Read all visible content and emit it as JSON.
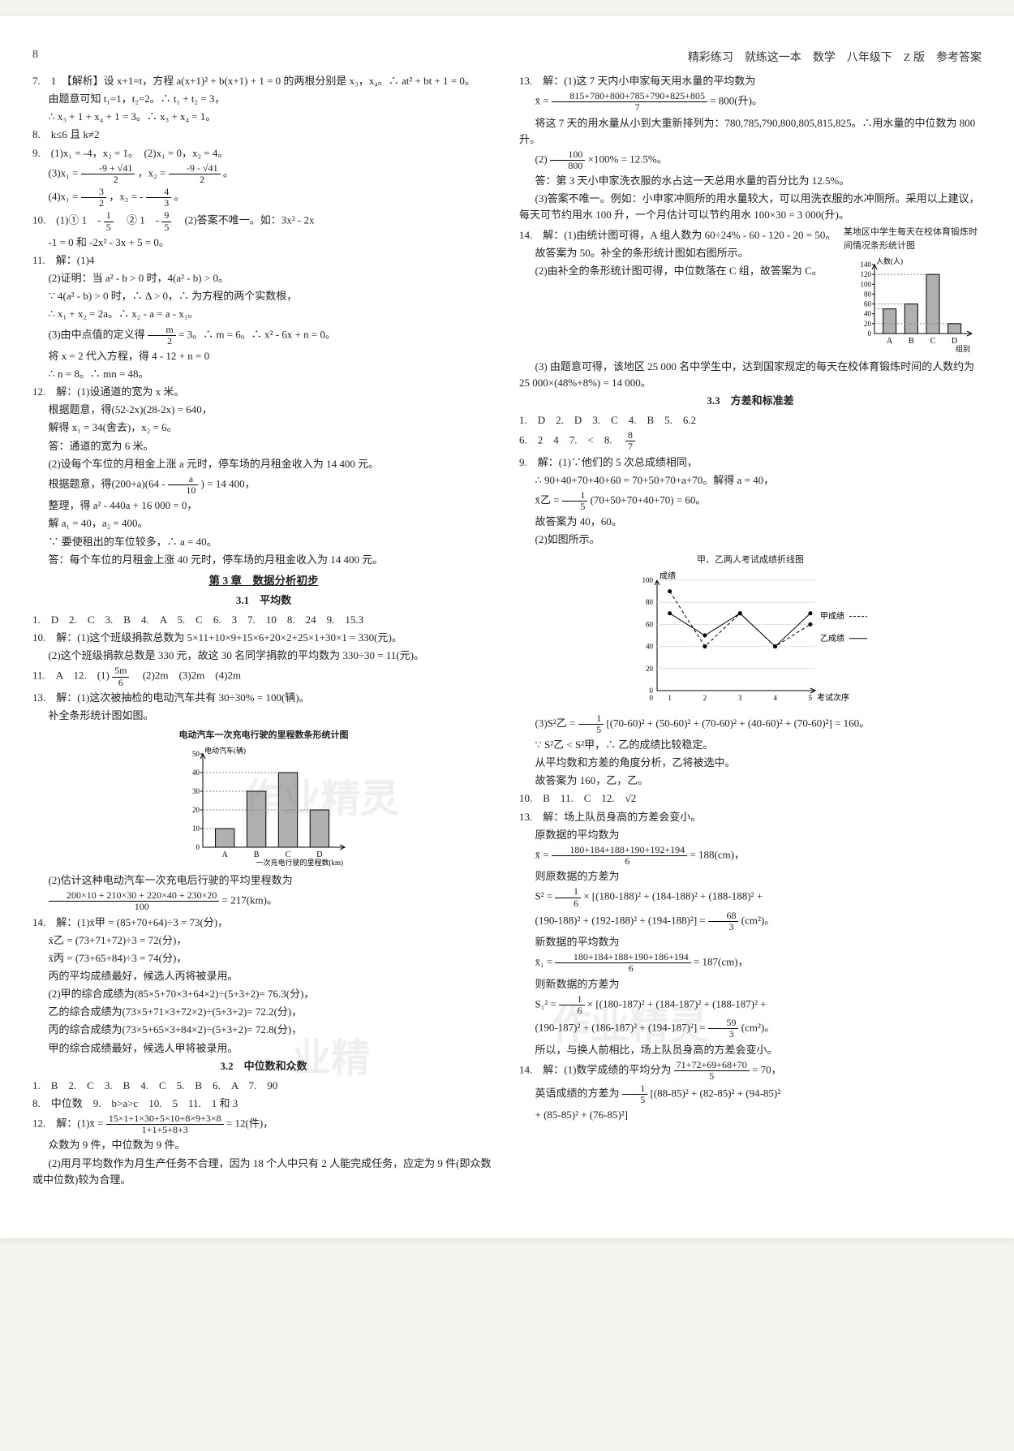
{
  "header": {
    "page_number": "8",
    "breadcrumb": "精彩练习　就练这一本　数学　八年级下　Z 版　参考答案"
  },
  "left": {
    "p7": "7.　1　【解析】设 x+1=t，方程 a(x+1)² + b(x+1) + 1 = 0 的两根分别是 x₃，x₄。∴ at² + bt + 1 = 0。",
    "p7b": "由题意可知 t₁=1，t₂=2。∴ t₁ + t₂ = 3，",
    "p7c": "∴ x₃ + 1 + x₄ + 1 = 3。∴ x₃ + x₄ = 1。",
    "p8": "8.　k≤6 且 k≠2",
    "p9": "9.　(1)x₁ = -4，x₂ = 1。　(2)x₁ = 0，x₂ = 4。",
    "p9b_pre": "(3)x₁ = ",
    "p9b_frac1_n": "-9 + √41",
    "p9b_frac1_d": "2",
    "p9b_mid": "，x₂ = ",
    "p9b_frac2_n": "-9 - √41",
    "p9b_frac2_d": "2",
    "p9b_post": "。",
    "p9c_pre": "(4)x₁ = ",
    "p9c_f1n": "3",
    "p9c_f1d": "2",
    "p9c_mid": "，x₂ = - ",
    "p9c_f2n": "4",
    "p9c_f2d": "3",
    "p9c_post": "。",
    "p10_pre": "10.　(1)① 1　- ",
    "p10_f1n": "1",
    "p10_f1d": "5",
    "p10_mid": "　② 1　- ",
    "p10_f2n": "9",
    "p10_f2d": "5",
    "p10_post": "　(2)答案不唯一。如：3x² - 2x",
    "p10b": "-1 = 0 和 -2x² - 3x + 5 = 0。",
    "p11": "11.　解：(1)4",
    "p11b": "(2)证明：当 a² - b > 0 时，4(a² - b) > 0。",
    "p11c": "∵ 4(a² - b) > 0 时，∴ Δ > 0，∴ 为方程的两个实数根，",
    "p11d": "∴ x₁ + x₂ = 2a。∴ x₂ - a = a - x₁。",
    "p11e_pre": "(3)由中点值的定义得 ",
    "p11e_fn": "m",
    "p11e_fd": "2",
    "p11e_post": " = 3。∴ m = 6。∴ x² - 6x + n = 0。",
    "p11f": "将 x = 2 代入方程，得 4 - 12 + n = 0",
    "p11g": "∴ n = 8。∴ mn = 48。",
    "p12": "12.　解：(1)设通道的宽为 x 米。",
    "p12b": "根据题意，得(52-2x)(28-2x) = 640，",
    "p12c": "解得 x₁ = 34(舍去)，x₂ = 6。",
    "p12d": "答：通道的宽为 6 米。",
    "p12e": "(2)设每个车位的月租金上涨 a 元时，停车场的月租金收入为 14 400 元。",
    "p12f_pre": "根据题意，得(200+a)(64 - ",
    "p12f_fn": "a",
    "p12f_fd": "10",
    "p12f_post": ") = 14 400，",
    "p12g": "整理，得 a² - 440a + 16 000 = 0，",
    "p12h": "解 a₁ = 40，a₂ = 400。",
    "p12i": "∵ 要使租出的车位较多，∴ a = 40。",
    "p12j": "答：每个车位的月租金上涨 40 元时，停车场的月租金收入为 14 400 元。",
    "sec3": "第 3 章　数据分析初步",
    "sec31": "3.1　平均数",
    "s31_q1": "1.　D　2.　C　3.　B　4.　A　5.　C　6.　3　7.　10　8.　24　9.　15.3",
    "s31_q10": "10.　解：(1)这个班级捐款总数为 5×11+10×9+15×6+20×2+25×1+30×1 = 330(元)。",
    "s31_q10b": "(2)这个班级捐款总数是 330 元，故这 30 名同学捐款的平均数为 330÷30 = 11(元)。",
    "s31_q11_pre": "11.　A　12.　(1) ",
    "s31_q11_fn": "5m",
    "s31_q11_fd": "6",
    "s31_q11_post": "　(2)2m　(3)2m　(4)2m",
    "s31_q13": "13.　解：(1)这次被抽检的电动汽车共有 30÷30% = 100(辆)。",
    "s31_q13b": "补全条形统计图如图。",
    "chart1": {
      "title": "电动汽车一次充电行驶的里程数条形统计图",
      "ylabel": "电动汽车(辆)",
      "xlabel": "一次充电行驶的里程数(km)",
      "categories": [
        "A",
        "B",
        "C",
        "D"
      ],
      "values": [
        10,
        30,
        40,
        20
      ],
      "extra_label": "30",
      "ylim": [
        0,
        50
      ],
      "ytick_step": 10,
      "bar_color": "#b0b0b0",
      "border_color": "#000000",
      "highlight_color": "#cccccc",
      "bg": "#ffffff"
    },
    "s31_q13c": "(2)估计这种电动汽车一次充电后行驶的平均里程数为",
    "s31_q13d_fn": "200×10 + 210×30 + 220×40 + 230×20",
    "s31_q13d_fd": "100",
    "s31_q13d_post": " = 217(km)。",
    "s31_q14": "14.　解：(1)x̄甲 = (85+70+64)÷3 = 73(分)，",
    "s31_q14b": "x̄乙 = (73+71+72)÷3 = 72(分)，",
    "s31_q14c": "x̄丙 = (73+65+84)÷3 = 74(分)，",
    "s31_q14d": "丙的平均成绩最好，候选人丙将被录用。",
    "s31_q14e": "(2)甲的综合成绩为(85×5+70×3+64×2)÷(5+3+2)= 76.3(分)，",
    "s31_q14f": "乙的综合成绩为(73×5+71×3+72×2)÷(5+3+2)= 72.2(分)，",
    "s31_q14g": "丙的综合成绩为(73×5+65×3+84×2)÷(5+3+2)= 72.8(分)，",
    "s31_q14h": "甲的综合成绩最好，候选人甲将被录用。",
    "sec32": "3.2　中位数和众数",
    "s32_q1": "1.　B　2.　C　3.　B　4.　C　5.　B　6.　A　7.　90",
    "s32_q8": "8.　中位数　9.　b>a>c　10.　5　11.　1 和 3",
    "s32_q12_pre": "12.　解：(1)x̄ = ",
    "s32_q12_fn": "15×1+1×30+5×10+8×9+3×8",
    "s32_q12_fd": "1+1+5+8+3",
    "s32_q12_post": " = 12(件)，",
    "s32_q12b": "众数为 9 件，中位数为 9 件。",
    "s32_q12c": "(2)用月平均数作为月生产任务不合理，因为 18 个人中只有 2 人能完成任务，应定为 9 件(即众数或中位数)较为合理。"
  },
  "right": {
    "p13": "13.　解：(1)这 7 天内小申家每天用水量的平均数为",
    "p13_fn": "815+780+800+785+790+825+805",
    "p13_fd": "7",
    "p13_post": " = 800(升)。",
    "p13b": "将这 7 天的用水量从小到大重新排列为：780,785,790,800,805,815,825。∴用水量的中位数为 800 升。",
    "p13c_pre": "(2) ",
    "p13c_fn": "100",
    "p13c_fd": "800",
    "p13c_post": " ×100% = 12.5%。",
    "p13d": "答：第 3 天小申家洗衣服的水占这一天总用水量的百分比为 12.5%。",
    "p13e": "(3)答案不唯一。例如：小申家冲厕所的用水量较大，可以用洗衣服的水冲厕所。采用以上建议，每天可节约用水 100 升，一个月估计可以节约用水 100×30 = 3 000(升)。",
    "p14": "14.　解：(1)由统计图可得，A 组人数为 60÷24% - 60 - 120 - 20 = 50。",
    "p14b": "故答案为 50。补全的条形统计图如右图所示。",
    "p14c": "(2)由补全的条形统计图可得，中位数落在 C 组，故答案为 C。",
    "p14d": "(3) 由题意可得，该地区 25 000 名中学生中，达到国家规定的每天在校体育锻炼时间的人数约为 25 000×(48%+8%) = 14 000。",
    "chart3": {
      "title": "某地区中学生每天在校体育锻炼时间情况条形统计图",
      "ylabel": "人数(人)",
      "xlabel": "组别",
      "categories": [
        "A",
        "B",
        "C",
        "D"
      ],
      "values": [
        50,
        60,
        120,
        20
      ],
      "ylim": [
        0,
        140
      ],
      "ytick_step": 20,
      "bar_color": "#b0b0b0",
      "border_color": "#000000"
    },
    "sec33": "3.3　方差和标准差",
    "s33_q1": "1.　D　2.　D　3.　C　4.　B　5.　6.2",
    "s33_q6_pre": "6.　2　4　7.　<　8.　",
    "s33_q6_fn": "8",
    "s33_q6_fd": "7",
    "s33_q9": "9.　解：(1)∵他们的 5 次总成绩相同，",
    "s33_q9b": "∴ 90+40+70+40+60 = 70+50+70+a+70。解得 a = 40，",
    "s33_q9c_pre": "x̄乙 = ",
    "s33_q9c_fn": "1",
    "s33_q9c_fd": "5",
    "s33_q9c_post": "(70+50+70+40+70) = 60。",
    "s33_q9d": "故答案为 40，60。",
    "s33_q9e": "(2)如图所示。",
    "chart2": {
      "title": "甲、乙两人考试成绩折线图",
      "ylabel": "成绩",
      "xlabel": "考试次序",
      "x": [
        1,
        2,
        3,
        4,
        5
      ],
      "series1": {
        "label": "甲成绩",
        "style": "dashed",
        "values": [
          90,
          40,
          70,
          40,
          60
        ],
        "color": "#000000"
      },
      "series2": {
        "label": "乙成绩",
        "style": "solid",
        "values": [
          70,
          50,
          70,
          40,
          70
        ],
        "color": "#000000"
      },
      "ylim": [
        0,
        100
      ],
      "ytick_step": 20,
      "grid_color": "#e0e0e0"
    },
    "s33_q9f_pre": "(3)S²乙 = ",
    "s33_q9f_fn": "1",
    "s33_q9f_fd": "5",
    "s33_q9f_post": "[(70-60)² + (50-60)² + (70-60)² + (40-60)² + (70-60)²] = 160。",
    "s33_q9g": "∵ S²乙 < S²甲，∴ 乙的成绩比较稳定。",
    "s33_q9h": "从平均数和方差的角度分析，乙将被选中。",
    "s33_q9i": "故答案为 160，乙，乙。",
    "s33_q10": "10.　B　11.　C　12.　√2",
    "s33_q13": "13.　解：场上队员身高的方差会变小。",
    "s33_q13b": "原数据的平均数为",
    "s33_q13c_pre": "x̄ = ",
    "s33_q13c_fn": "180+184+188+190+192+194",
    "s33_q13c_fd": "6",
    "s33_q13c_post": " = 188(cm)，",
    "s33_q13d": "则原数据的方差为",
    "s33_q13e_pre": "S² = ",
    "s33_q13e_fn": "1",
    "s33_q13e_fd": "6",
    "s33_q13e_post": " × [(180-188)² + (184-188)² + (188-188)² +",
    "s33_q13f_pre": "(190-188)² + (192-188)² + (194-188)²] = ",
    "s33_q13f_fn": "68",
    "s33_q13f_fd": "3",
    "s33_q13f_post": "(cm²)。",
    "s33_q13g": "新数据的平均数为",
    "s33_q13h_pre": "x̄₁ = ",
    "s33_q13h_fn": "180+184+188+190+186+194",
    "s33_q13h_fd": "6",
    "s33_q13h_post": " = 187(cm)，",
    "s33_q13i": "则新数据的方差为",
    "s33_q13j_pre": "S₁² = ",
    "s33_q13j_fn": "1",
    "s33_q13j_fd": "6",
    "s33_q13j_post": " × [(180-187)² + (184-187)² + (188-187)² +",
    "s33_q13k_pre": "(190-187)² + (186-187)² + (194-187)²] = ",
    "s33_q13k_fn": "59",
    "s33_q13k_fd": "3",
    "s33_q13k_post": "(cm²)。",
    "s33_q13l": "所以，与换人前相比，场上队员身高的方差会变小。",
    "s33_q14_pre": "14.　解：(1)数学成绩的平均分为 ",
    "s33_q14_fn": "71+72+69+68+70",
    "s33_q14_fd": "5",
    "s33_q14_post": " = 70，",
    "s33_q14b_pre": "英语成绩的方差为 ",
    "s33_q14b_fn": "1",
    "s33_q14b_fd": "5",
    "s33_q14b_post": "[(88-85)² + (82-85)² + (94-85)²",
    "s33_q14c": "+ (85-85)² + (76-85)²]"
  },
  "watermarks": {
    "wm1": "作业精灵",
    "wm2": "业精",
    "wm3": "作业精灵"
  }
}
